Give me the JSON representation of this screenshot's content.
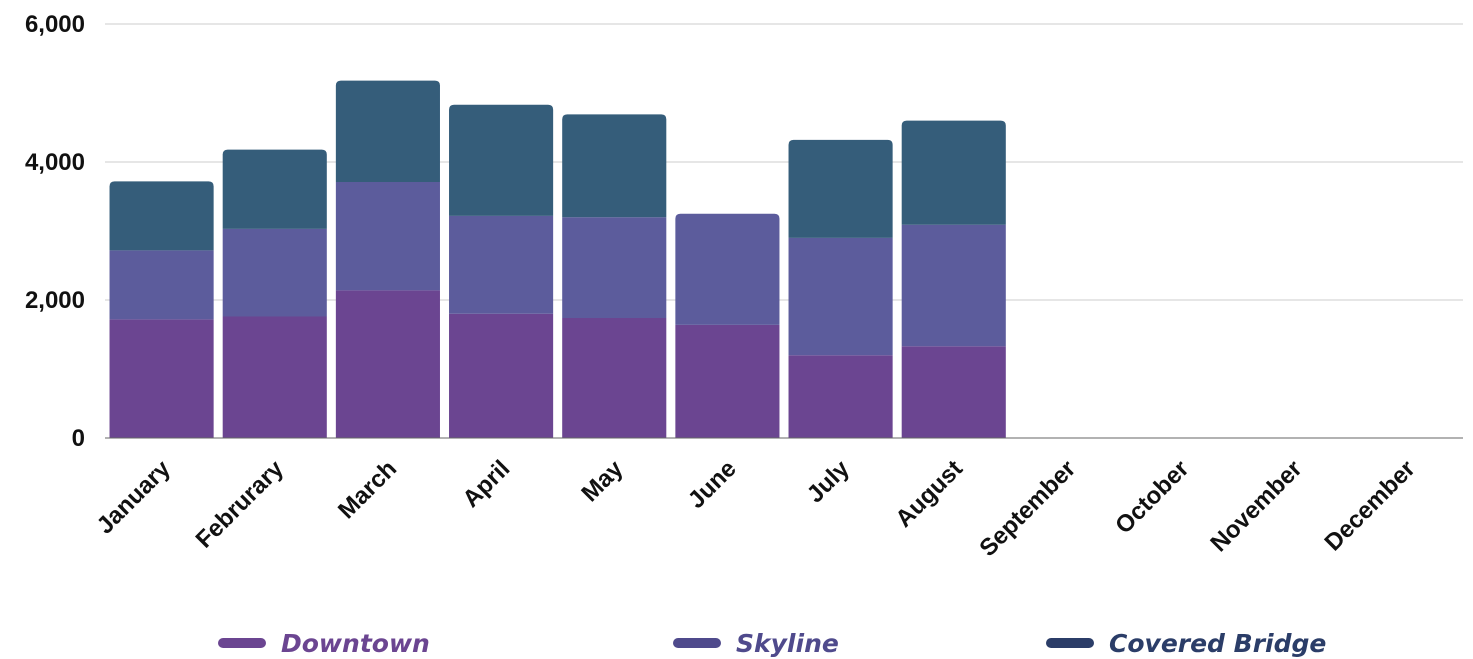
{
  "chart_data": {
    "type": "bar",
    "stacked": true,
    "categories": [
      "January",
      "Februrary",
      "March",
      "April",
      "May",
      "June",
      "July",
      "August",
      "September",
      "October",
      "November",
      "December"
    ],
    "series": [
      {
        "name": "Downtown",
        "color": "#6b4591",
        "values": [
          1720,
          1760,
          2140,
          1800,
          1740,
          1640,
          1200,
          1330,
          0,
          0,
          0,
          0
        ]
      },
      {
        "name": "Skyline",
        "color": "#5c5c9c",
        "values": [
          1000,
          1270,
          1570,
          1420,
          1460,
          1610,
          1700,
          1760,
          0,
          0,
          0,
          0
        ]
      },
      {
        "name": "Covered Bridge",
        "color": "#355d7a",
        "values": [
          1000,
          1150,
          1470,
          1610,
          1490,
          0,
          1420,
          1510,
          0,
          0,
          0,
          0
        ]
      }
    ],
    "ylim": [
      0,
      6000
    ],
    "yticks": [
      0,
      2000,
      4000,
      6000
    ],
    "ytick_labels": [
      "0",
      "2,000",
      "4,000",
      "6,000"
    ],
    "legend_colors": [
      "#6b4591",
      "#4f4a8c",
      "#2b3d68"
    ],
    "legend_position": "bottom",
    "grid": true
  }
}
